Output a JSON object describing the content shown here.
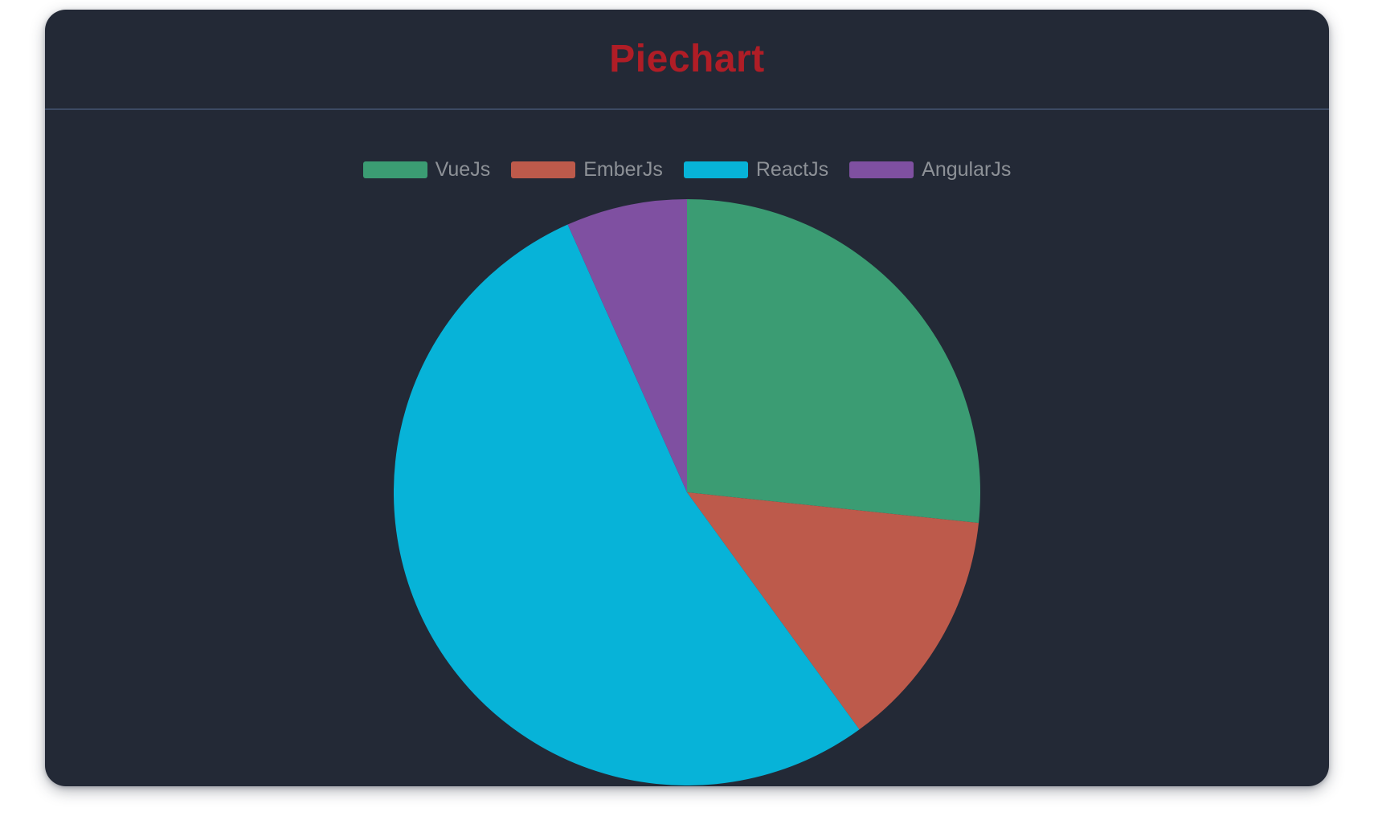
{
  "card": {
    "title": "Piechart"
  },
  "colors": {
    "page_background": "#ffffff",
    "card_background": "#232936",
    "title_text": "#b01d26",
    "divider": "#3c4a63",
    "legend_text": "#8d9197"
  },
  "chart_data": {
    "type": "pie",
    "title": "Piechart",
    "legend_position": "top",
    "start_angle_deg": 0,
    "direction": "clockwise",
    "total": 150,
    "series": [
      {
        "name": "VueJs",
        "value": 40,
        "percent": 26.7,
        "angle_deg": 96,
        "color": "#3b9c73"
      },
      {
        "name": "EmberJs",
        "value": 20,
        "percent": 13.3,
        "angle_deg": 48,
        "color": "#bd5a4b"
      },
      {
        "name": "ReactJs",
        "value": 80,
        "percent": 53.3,
        "angle_deg": 192,
        "color": "#07b3d8"
      },
      {
        "name": "AngularJs",
        "value": 10,
        "percent": 6.7,
        "angle_deg": 24,
        "color": "#7f50a1"
      }
    ]
  }
}
